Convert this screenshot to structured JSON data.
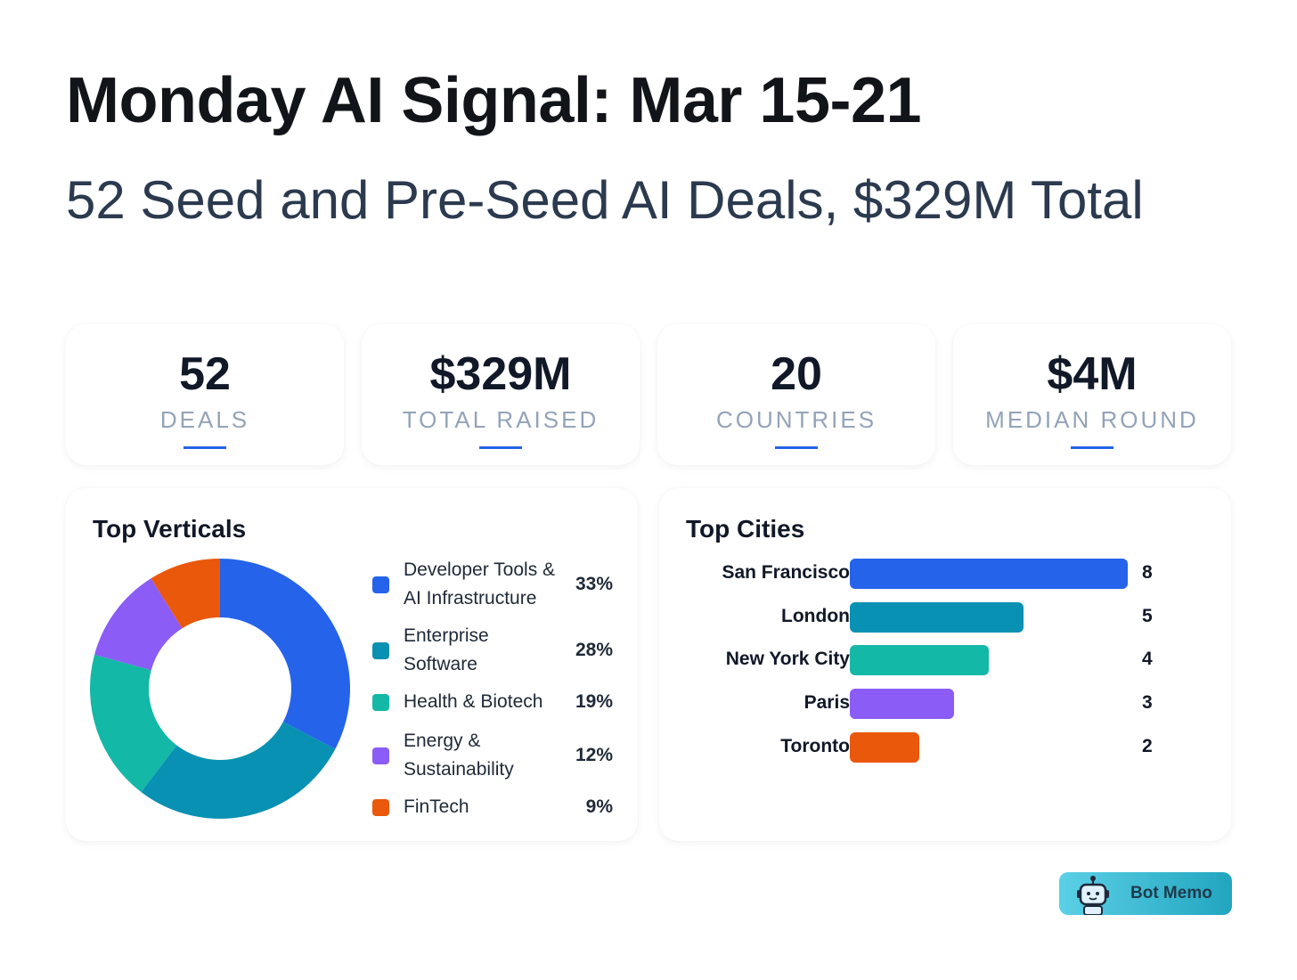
{
  "header": {
    "title": "Monday AI Signal: Mar 15-21",
    "subtitle": "52 Seed and Pre-Seed AI Deals, $329M Total"
  },
  "stats": [
    {
      "value": "52",
      "label": "DEALS"
    },
    {
      "value": "$329M",
      "label": "TOTAL RAISED"
    },
    {
      "value": "20",
      "label": "COUNTRIES"
    },
    {
      "value": "$4M",
      "label": "MEDIAN ROUND"
    }
  ],
  "accent": "#2563eb",
  "chart_data": [
    {
      "type": "pie",
      "title": "Top Verticals",
      "donut": true,
      "legend": "right",
      "categories": [
        "Developer Tools & AI Infrastructure",
        "Enterprise Software",
        "Health & Biotech",
        "Energy & Sustainability",
        "FinTech"
      ],
      "labels": [
        [
          "Developer Tools &",
          "AI Infrastructure"
        ],
        [
          "Enterprise",
          "Software"
        ],
        [
          "Health & Biotech"
        ],
        [
          "Energy &",
          "Sustainability"
        ],
        [
          "FinTech"
        ]
      ],
      "values": [
        33,
        28,
        19,
        12,
        9
      ],
      "value_labels": [
        "33%",
        "28%",
        "19%",
        "12%",
        "9%"
      ],
      "colors": [
        "#2563eb",
        "#0891b2",
        "#14b8a6",
        "#8b5cf6",
        "#ea580c"
      ]
    },
    {
      "type": "bar",
      "orientation": "horizontal",
      "title": "Top Cities",
      "categories": [
        "San Francisco",
        "London",
        "New York City",
        "Paris",
        "Toronto"
      ],
      "values": [
        8,
        5,
        4,
        3,
        2
      ],
      "value_labels": [
        "8",
        "5",
        "4",
        "3",
        "2"
      ],
      "colors": [
        "#2563eb",
        "#0891b2",
        "#14b8a6",
        "#8b5cf6",
        "#ea580c"
      ]
    }
  ],
  "logo": {
    "text": "Bot Memo",
    "icon": "robot-icon"
  }
}
